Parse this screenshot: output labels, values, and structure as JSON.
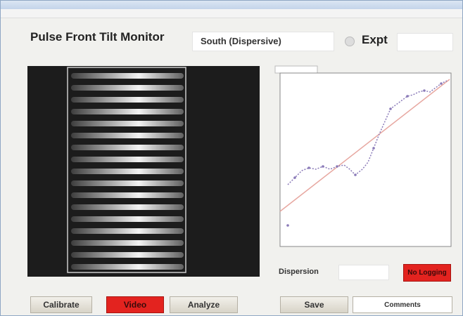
{
  "header": {
    "title": "Pulse Front Tilt Monitor",
    "direction": "South (Dispersive)",
    "mode": "Expt"
  },
  "status": {
    "label": "Dispersion"
  },
  "buttons": {
    "logging": "No Logging",
    "calibrate": "Calibrate",
    "video": "Video",
    "analyze": "Analyze",
    "save": "Save",
    "comments": "Comments"
  }
}
